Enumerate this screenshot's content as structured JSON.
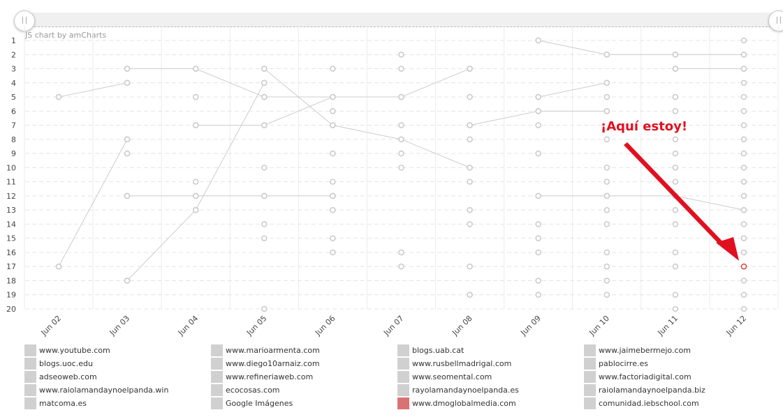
{
  "credit": "JS chart by amCharts",
  "annotation": "¡Aquí estoy!",
  "chart_data": {
    "type": "line",
    "categories": [
      "Jun 02",
      "Jun 03",
      "Jun 04",
      "Jun 05",
      "Jun 06",
      "Jun 07",
      "Jun 08",
      "Jun 09",
      "Jun 10",
      "Jun 11",
      "Jun 12"
    ],
    "y_reversed": true,
    "ylim": [
      1,
      20
    ],
    "y_ticks": [
      1,
      2,
      3,
      4,
      5,
      6,
      7,
      8,
      9,
      10,
      11,
      12,
      13,
      14,
      15,
      16,
      17,
      18,
      19,
      20
    ],
    "grid": true,
    "default_color": "#cccccc",
    "highlight_color": "#d9534f",
    "series": [
      {
        "name": "www.youtube.com",
        "values": [
          null,
          12,
          12,
          12,
          12,
          null,
          null,
          12,
          12,
          12,
          13
        ]
      },
      {
        "name": "www.marioarmenta.com",
        "values": [
          null,
          3,
          3,
          5,
          5,
          5,
          3,
          null,
          null,
          null,
          null
        ]
      },
      {
        "name": "blogs.uab.cat",
        "values": [
          null,
          null,
          null,
          null,
          null,
          null,
          null,
          1,
          2,
          2,
          2
        ]
      },
      {
        "name": "www.jaimebermejo.com",
        "values": [
          null,
          null,
          null,
          null,
          null,
          null,
          null,
          null,
          null,
          3,
          3
        ]
      },
      {
        "name": "blogs.uoc.edu",
        "values": [
          5,
          4,
          null,
          null,
          null,
          null,
          null,
          null,
          null,
          null,
          null
        ]
      },
      {
        "name": "www.diego10arnaiz.com",
        "values": [
          null,
          null,
          7,
          7,
          5,
          null,
          null,
          null,
          null,
          null,
          null
        ]
      },
      {
        "name": "www.rusbellmadrigal.com",
        "values": [
          null,
          9,
          null,
          null,
          12,
          null,
          null,
          null,
          null,
          null,
          null
        ]
      },
      {
        "name": "pablocirre.es",
        "values": [
          null,
          null,
          null,
          null,
          null,
          null,
          7,
          6,
          6,
          null,
          null
        ]
      },
      {
        "name": "adseoweb.com",
        "values": [
          17,
          8,
          null,
          null,
          null,
          null,
          null,
          null,
          null,
          null,
          null
        ]
      },
      {
        "name": "www.refineriaweb.com",
        "values": [
          null,
          null,
          null,
          3,
          7,
          8,
          10,
          null,
          null,
          null,
          null
        ]
      },
      {
        "name": "www.seomental.com",
        "values": [
          null,
          null,
          null,
          null,
          null,
          null,
          null,
          5,
          4,
          null,
          null
        ]
      },
      {
        "name": "www.factoriadigital.com",
        "values": [
          null,
          null,
          null,
          null,
          null,
          null,
          null,
          null,
          null,
          10,
          null
        ]
      },
      {
        "name": "www.raiolamandaynoelpanda.win",
        "values": [
          null,
          null,
          null,
          null,
          null,
          null,
          null,
          null,
          null,
          null,
          null
        ]
      },
      {
        "name": "ecocosas.com",
        "values": [
          null,
          18,
          13,
          4,
          null,
          null,
          null,
          null,
          null,
          null,
          null
        ]
      },
      {
        "name": "rayolamandaynoelpanda.es",
        "values": [
          null,
          null,
          null,
          null,
          null,
          null,
          null,
          null,
          null,
          null,
          null
        ]
      },
      {
        "name": "raiolamandaynoelpanda.biz",
        "values": [
          null,
          null,
          null,
          null,
          null,
          null,
          null,
          null,
          null,
          null,
          null
        ]
      },
      {
        "name": "matcoma.es",
        "values": [
          null,
          null,
          null,
          null,
          null,
          null,
          null,
          null,
          null,
          null,
          null
        ]
      },
      {
        "name": "Google Imágenes",
        "values": [
          null,
          null,
          null,
          20,
          null,
          null,
          null,
          null,
          null,
          null,
          null
        ]
      },
      {
        "name": "www.dmoglobalmedia.com",
        "values": [
          null,
          null,
          null,
          null,
          null,
          null,
          null,
          null,
          null,
          null,
          17
        ]
      },
      {
        "name": "comunidad.iebschool.com",
        "values": [
          null,
          null,
          null,
          null,
          null,
          null,
          null,
          null,
          null,
          null,
          null
        ]
      }
    ],
    "extra_points": [
      [
        0,
        [
          5,
          17
        ]
      ],
      [
        1,
        [
          3,
          4,
          8,
          9,
          12,
          18
        ]
      ],
      [
        2,
        [
          3,
          5,
          7,
          11,
          12,
          13
        ]
      ],
      [
        3,
        [
          3,
          4,
          5,
          7,
          10,
          12,
          14,
          15,
          20
        ]
      ],
      [
        4,
        [
          3,
          5,
          6,
          7,
          9,
          11,
          12,
          13,
          15,
          16
        ]
      ],
      [
        5,
        [
          2,
          3,
          5,
          7,
          8,
          9,
          10,
          16,
          17
        ]
      ],
      [
        6,
        [
          3,
          5,
          7,
          8,
          10,
          11,
          13,
          14,
          17,
          19
        ]
      ],
      [
        7,
        [
          1,
          5,
          6,
          7,
          9,
          12,
          14,
          15,
          16,
          18,
          19
        ]
      ],
      [
        8,
        [
          2,
          4,
          5,
          6,
          8,
          10,
          11,
          12,
          13,
          14,
          16,
          17,
          18,
          19
        ]
      ],
      [
        9,
        [
          2,
          3,
          5,
          6,
          7,
          8,
          9,
          10,
          11,
          12,
          13,
          14,
          16,
          17,
          19,
          20
        ]
      ],
      [
        10,
        [
          1,
          2,
          3,
          4,
          5,
          6,
          7,
          8,
          9,
          10,
          11,
          12,
          13,
          14,
          15,
          16,
          17,
          18,
          19,
          20
        ]
      ]
    ]
  },
  "legend": [
    "www.youtube.com",
    "www.marioarmenta.com",
    "blogs.uab.cat",
    "www.jaimebermejo.com",
    "blogs.uoc.edu",
    "www.diego10arnaiz.com",
    "www.rusbellmadrigal.com",
    "pablocirre.es",
    "adseoweb.com",
    "www.refineriaweb.com",
    "www.seomental.com",
    "www.factoriadigital.com",
    "www.raiolamandaynoelpanda.win",
    "ecocosas.com",
    "rayolamandaynoelpanda.es",
    "raiolamandaynoelpanda.biz",
    "matcoma.es",
    "Google Imágenes",
    "www.dmoglobalmedia.com",
    "comunidad.iebschool.com"
  ],
  "highlighted": "www.dmoglobalmedia.com"
}
